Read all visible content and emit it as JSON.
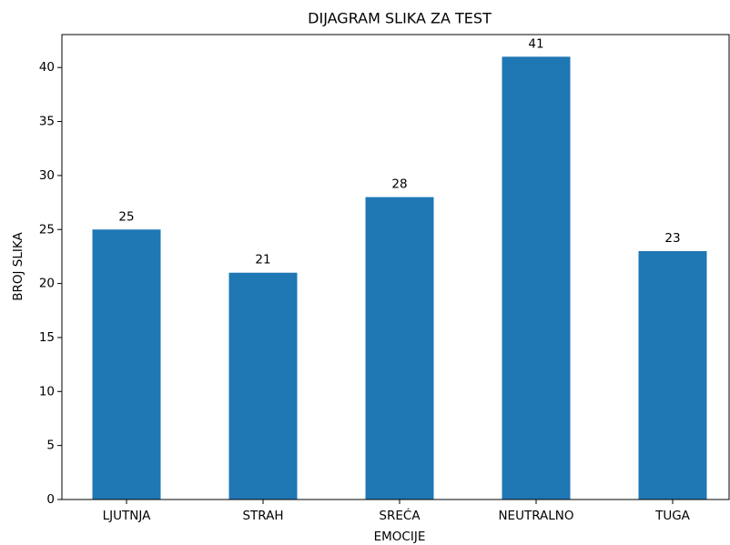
{
  "chart_data": {
    "type": "bar",
    "title": "DIJAGRAM SLIKA ZA TEST",
    "x_label": "EMOCIJE",
    "y_label": "BROJ SLIKA",
    "categories": [
      "LJUTNJA",
      "STRAH",
      "SREĆA",
      "NEUTRALNO",
      "TUGA"
    ],
    "values": [
      25,
      21,
      28,
      41,
      23
    ],
    "color": "#1f77b4",
    "ylim": [
      0,
      43.05
    ],
    "yticks": [
      0,
      5,
      10,
      15,
      20,
      25,
      30,
      35,
      40
    ],
    "grid": false,
    "value_labels_shown": true
  }
}
